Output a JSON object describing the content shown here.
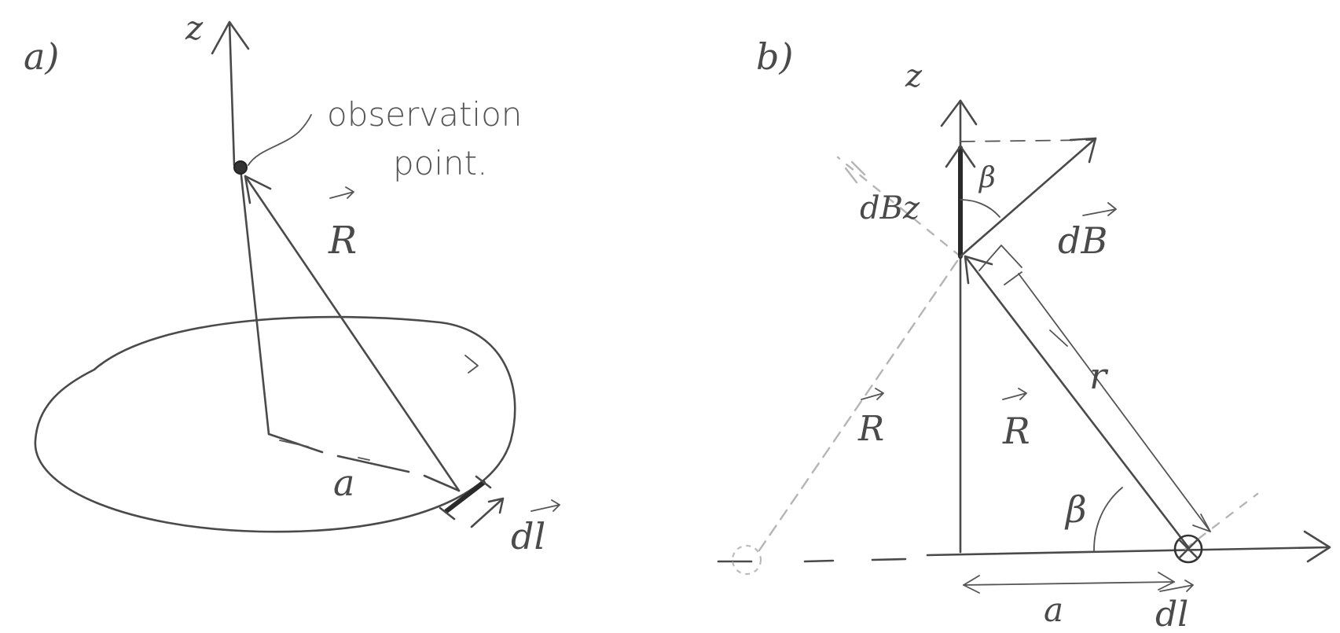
{
  "panel_a": {
    "label": "a)",
    "axis_label": "z",
    "observation_label_line1": "observation",
    "observation_label_line2": "point.",
    "vector_R": "R",
    "radius": "a",
    "element_dl": "dl"
  },
  "panel_b": {
    "label": "b)",
    "axis_label": "z",
    "component_label": "dBz",
    "vector_dB": "dB",
    "angle_top": "β",
    "angle_bottom": "β",
    "vector_R": "R",
    "vector_R_mirror": "R",
    "distance_label": "r",
    "radius": "a",
    "element_dl": "dl"
  }
}
